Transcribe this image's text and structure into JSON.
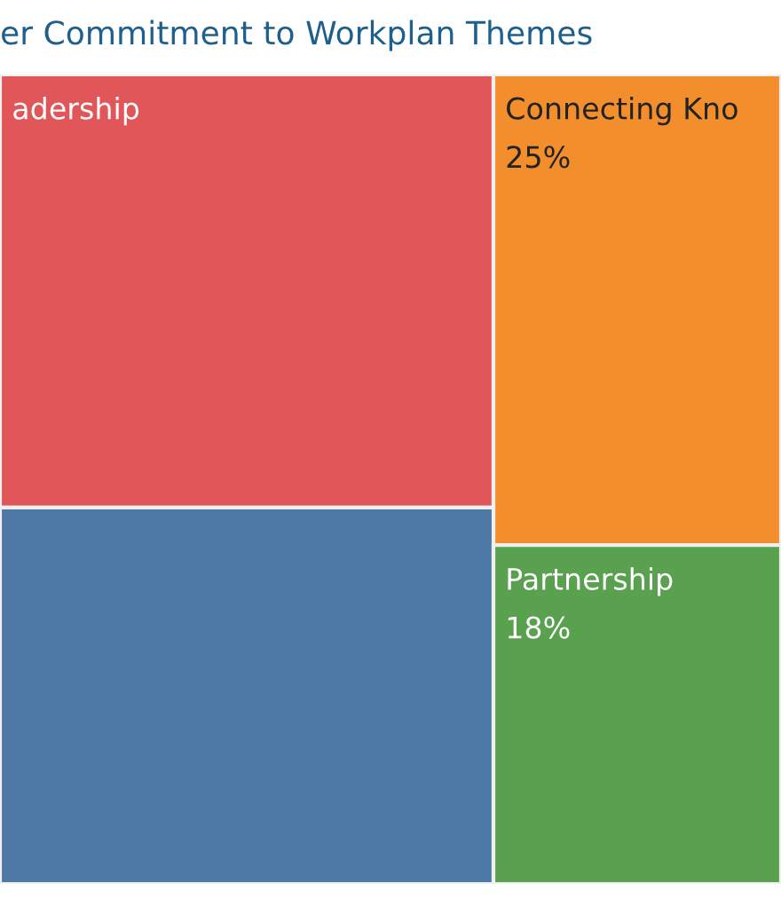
{
  "chart_data": {
    "type": "other",
    "title": "er Commitment to Workplan Themes",
    "categories": [
      "adership",
      "Connecting Kno",
      null,
      "Partnership"
    ],
    "values": [
      null,
      25,
      null,
      18
    ],
    "value_labels": [
      null,
      "25%",
      null,
      "18%"
    ],
    "colors": [
      "#e15759",
      "#f28e2b",
      "#4e79a7",
      "#59a14f"
    ]
  }
}
